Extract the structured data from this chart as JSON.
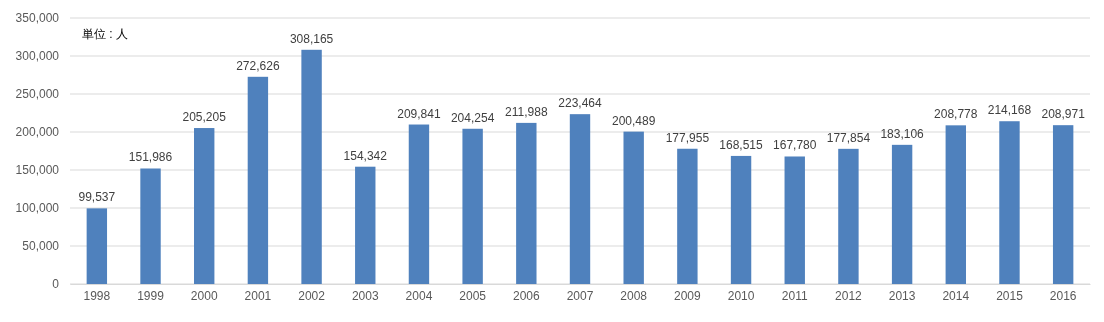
{
  "chart_data": {
    "type": "bar",
    "categories": [
      "1998",
      "1999",
      "2000",
      "2001",
      "2002",
      "2003",
      "2004",
      "2005",
      "2006",
      "2007",
      "2008",
      "2009",
      "2010",
      "2011",
      "2012",
      "2013",
      "2014",
      "2015",
      "2016"
    ],
    "values": [
      99537,
      151986,
      205205,
      272626,
      308165,
      154342,
      209841,
      204254,
      211988,
      223464,
      200489,
      177955,
      168515,
      167780,
      177854,
      183106,
      208778,
      214168,
      208971
    ],
    "value_labels": [
      "99,537",
      "151,986",
      "205,205",
      "272,626",
      "308,165",
      "154,342",
      "209,841",
      "204,254",
      "211,988",
      "223,464",
      "200,489",
      "177,955",
      "168,515",
      "167,780",
      "177,854",
      "183,106",
      "208,778",
      "214,168",
      "208,971"
    ],
    "color": "#4f81bd",
    "ylim": [
      0,
      350000
    ],
    "yticks": [
      {
        "value": 0,
        "label": "0"
      },
      {
        "value": 50000,
        "label": "50,000"
      },
      {
        "value": 100000,
        "label": "100,000"
      },
      {
        "value": 150000,
        "label": "150,000"
      },
      {
        "value": 200000,
        "label": "200,000"
      },
      {
        "value": 250000,
        "label": "250,000"
      },
      {
        "value": 300000,
        "label": "300,000"
      },
      {
        "value": 350000,
        "label": "350,000"
      }
    ],
    "grid": "y",
    "annotations": [
      "単位 : 人"
    ]
  }
}
